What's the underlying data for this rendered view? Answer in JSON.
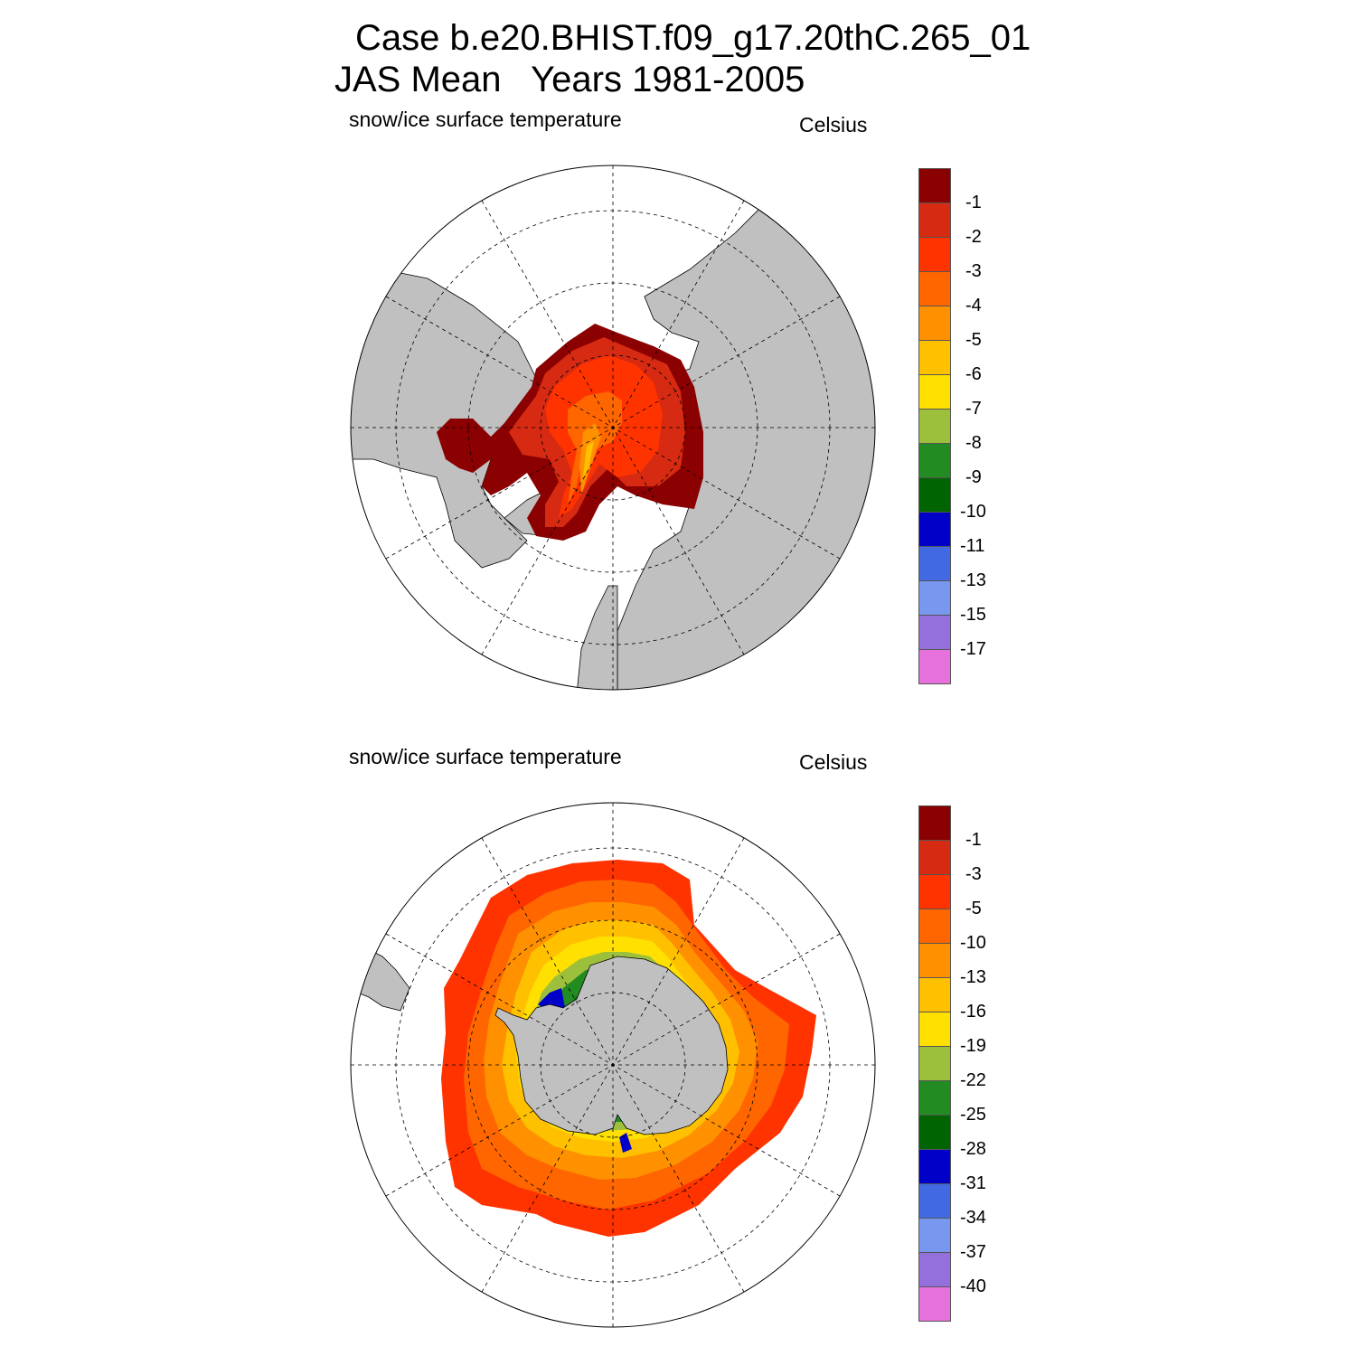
{
  "titles": {
    "line1": "Case b.e20.BHIST.f09_g17.20thC.265_01",
    "line2": "JAS Mean   Years 1981-2005"
  },
  "panels": [
    {
      "hemisphere": "north",
      "left_label": "snow/ice surface temperature",
      "right_label": "Celsius",
      "colorbar": {
        "colors": [
          "#8b0000",
          "#d62a12",
          "#ff3300",
          "#ff6600",
          "#ff9000",
          "#ffc000",
          "#ffe000",
          "#9dc03c",
          "#228b22",
          "#006400",
          "#0000c8",
          "#4169e1",
          "#7898f0",
          "#9370db",
          "#e670dc"
        ],
        "labels": [
          "-1",
          "-2",
          "-3",
          "-4",
          "-5",
          "-6",
          "-7",
          "-8",
          "-9",
          "-10",
          "-11",
          "-13",
          "-15",
          "-17"
        ]
      }
    },
    {
      "hemisphere": "south",
      "left_label": "snow/ice surface temperature",
      "right_label": "Celsius",
      "colorbar": {
        "colors": [
          "#8b0000",
          "#d62a12",
          "#ff3300",
          "#ff6600",
          "#ff9000",
          "#ffc000",
          "#ffe000",
          "#9dc03c",
          "#228b22",
          "#006400",
          "#0000c8",
          "#4169e1",
          "#7898f0",
          "#9370db",
          "#e670dc"
        ],
        "labels": [
          "-1",
          "-3",
          "-5",
          "-10",
          "-13",
          "-16",
          "-19",
          "-22",
          "-25",
          "-28",
          "-31",
          "-34",
          "-37",
          "-40"
        ]
      }
    }
  ]
}
